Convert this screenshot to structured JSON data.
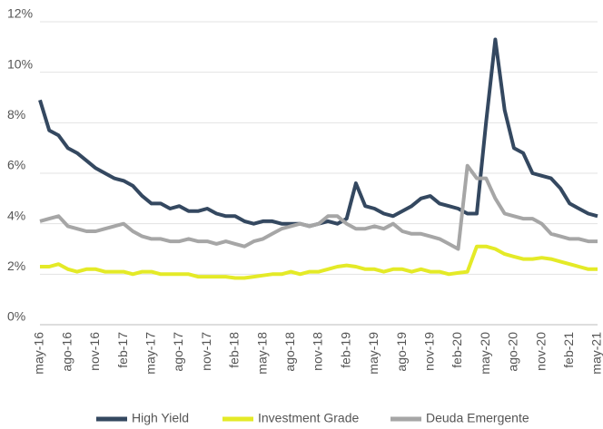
{
  "chart_data": {
    "type": "line",
    "categories": [
      "may-16",
      null,
      null,
      "ago-16",
      null,
      null,
      "nov-16",
      null,
      null,
      "feb-17",
      null,
      null,
      "may-17",
      null,
      null,
      "ago-17",
      null,
      null,
      "nov-17",
      null,
      null,
      "feb-18",
      null,
      null,
      "may-18",
      null,
      null,
      "ago-18",
      null,
      null,
      "nov-18",
      null,
      null,
      "feb-19",
      null,
      null,
      "may-19",
      null,
      null,
      "ago-19",
      null,
      null,
      "nov-19",
      null,
      null,
      "feb-20",
      null,
      null,
      "may-20",
      null,
      null,
      "ago-20",
      null,
      null,
      "nov-20",
      null,
      null,
      "feb-21",
      null,
      null,
      "may-21"
    ],
    "series": [
      {
        "name": "High Yield",
        "color": "#344860",
        "values": [
          8.9,
          7.7,
          7.5,
          7.0,
          6.8,
          6.5,
          6.2,
          6.0,
          5.8,
          5.7,
          5.5,
          5.1,
          4.8,
          4.8,
          4.6,
          4.7,
          4.5,
          4.5,
          4.6,
          4.4,
          4.3,
          4.3,
          4.1,
          4.0,
          4.1,
          4.1,
          4.0,
          4.0,
          4.0,
          3.9,
          4.0,
          4.1,
          4.0,
          4.2,
          5.6,
          4.7,
          4.6,
          4.4,
          4.3,
          4.5,
          4.7,
          5.0,
          5.1,
          4.8,
          4.7,
          4.6,
          4.4,
          4.4,
          8.0,
          11.3,
          8.5,
          7.0,
          6.8,
          6.0,
          5.9,
          5.8,
          5.4,
          4.8,
          4.6,
          4.4,
          4.3
        ]
      },
      {
        "name": "Investment Grade",
        "color": "#e4ea27",
        "values": [
          2.3,
          2.3,
          2.4,
          2.2,
          2.1,
          2.2,
          2.2,
          2.1,
          2.1,
          2.1,
          2.0,
          2.1,
          2.1,
          2.0,
          2.0,
          2.0,
          2.0,
          1.9,
          1.9,
          1.9,
          1.9,
          1.85,
          1.85,
          1.9,
          1.95,
          2.0,
          2.0,
          2.1,
          2.0,
          2.1,
          2.1,
          2.2,
          2.3,
          2.35,
          2.3,
          2.2,
          2.2,
          2.1,
          2.2,
          2.2,
          2.1,
          2.2,
          2.1,
          2.1,
          2.0,
          2.05,
          2.1,
          3.1,
          3.1,
          3.0,
          2.8,
          2.7,
          2.6,
          2.6,
          2.65,
          2.6,
          2.5,
          2.4,
          2.3,
          2.2,
          2.2
        ]
      },
      {
        "name": "Deuda Emergente",
        "color": "#a6a6a6",
        "values": [
          4.1,
          4.2,
          4.3,
          3.9,
          3.8,
          3.7,
          3.7,
          3.8,
          3.9,
          4.0,
          3.7,
          3.5,
          3.4,
          3.4,
          3.3,
          3.3,
          3.4,
          3.3,
          3.3,
          3.2,
          3.3,
          3.2,
          3.1,
          3.3,
          3.4,
          3.6,
          3.8,
          3.9,
          4.0,
          3.9,
          4.0,
          4.3,
          4.3,
          4.0,
          3.8,
          3.8,
          3.9,
          3.8,
          4.0,
          3.7,
          3.6,
          3.6,
          3.5,
          3.4,
          3.2,
          3.0,
          6.3,
          5.8,
          5.8,
          5.0,
          4.4,
          4.3,
          4.2,
          4.2,
          4.0,
          3.6,
          3.5,
          3.4,
          3.4,
          3.3,
          3.3
        ]
      }
    ],
    "ylim": [
      0,
      12
    ],
    "yticks": [
      {
        "value": 0,
        "label": "0%"
      },
      {
        "value": 2,
        "label": "2%"
      },
      {
        "value": 4,
        "label": "4%"
      },
      {
        "value": 6,
        "label": "6%"
      },
      {
        "value": 8,
        "label": "8%"
      },
      {
        "value": 10,
        "label": "10%"
      },
      {
        "value": 12,
        "label": "12%"
      }
    ],
    "grid": true,
    "legend": "bottom"
  }
}
